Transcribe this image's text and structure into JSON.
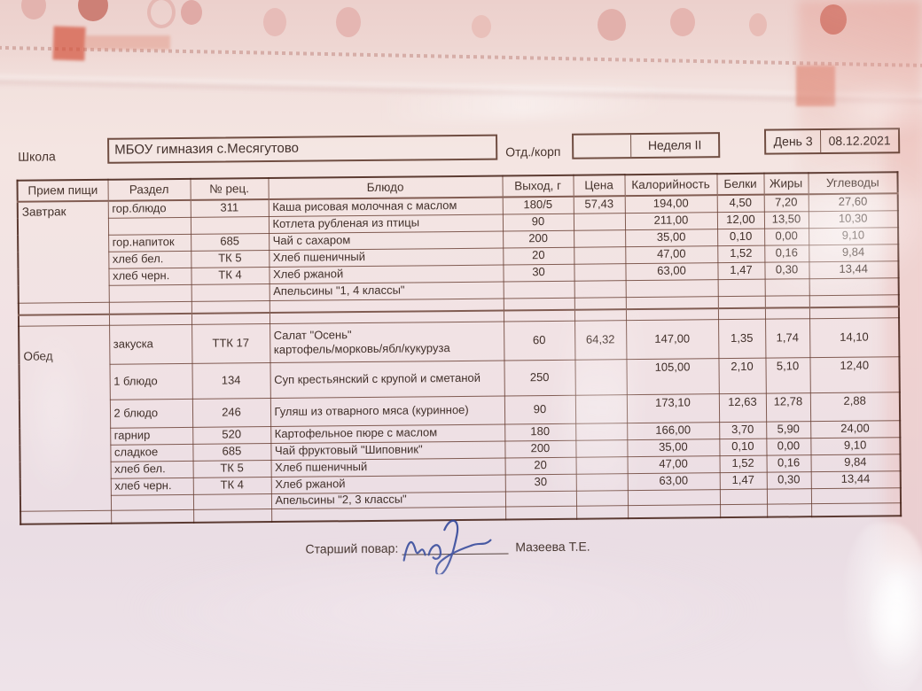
{
  "header": {
    "school_label": "Школа",
    "school_name": "МБОУ гимназия с.Месягутово",
    "dept_label": "Отд./корп",
    "dept_value": "",
    "week": "Неделя II",
    "day": "День 3",
    "date": "08.12.2021"
  },
  "table": {
    "columns": [
      "Прием пищи",
      "Раздел",
      "№ рец.",
      "Блюдо",
      "Выход, г",
      "Цена",
      "Калорийность",
      "Белки",
      "Жиры",
      "Углеводы"
    ],
    "sections": [
      {
        "meal": "Завтрак",
        "rows": [
          {
            "razdel": "гор.блюдо",
            "rec": "311",
            "dish": "Каша рисовая молочная с маслом",
            "out": "180/5",
            "price": "57,43",
            "kcal": "194,00",
            "protein": "4,50",
            "fat": "7,20",
            "carbs": "27,60"
          },
          {
            "razdel": "",
            "rec": "",
            "dish": "Котлета рубленая из птицы",
            "out": "90",
            "price": "",
            "kcal": "211,00",
            "protein": "12,00",
            "fat": "13,50",
            "carbs": "10,30"
          },
          {
            "razdel": "гор.напиток",
            "rec": "685",
            "dish": "Чай с сахаром",
            "out": "200",
            "price": "",
            "kcal": "35,00",
            "protein": "0,10",
            "fat": "0,00",
            "carbs": "9,10"
          },
          {
            "razdel": "хлеб бел.",
            "rec": "ТК 5",
            "dish": "Хлеб пшеничный",
            "out": "20",
            "price": "",
            "kcal": "47,00",
            "protein": "1,52",
            "fat": "0,16",
            "carbs": "9,84"
          },
          {
            "razdel": "хлеб черн.",
            "rec": "ТК 4",
            "dish": "Хлеб ржаной",
            "out": "30",
            "price": "",
            "kcal": "63,00",
            "protein": "1,47",
            "fat": "0,30",
            "carbs": "13,44"
          },
          {
            "razdel": "",
            "rec": "",
            "dish": "Апельсины \"1, 4 классы\"",
            "out": "",
            "price": "",
            "kcal": "",
            "protein": "",
            "fat": "",
            "carbs": ""
          }
        ]
      },
      {
        "meal": "Обед",
        "rows": [
          {
            "razdel": "закуска",
            "rec": "ТТК 17",
            "dish": "Салат \"Осень\"",
            "dish2": "картофель/морковь/ябл/кукуруза",
            "out": "60",
            "price": "64,32",
            "kcal": "147,00",
            "protein": "1,35",
            "fat": "1,74",
            "carbs": "14,10"
          },
          {
            "razdel": "1 блюдо",
            "rec": "134",
            "dish": "Суп крестьянский с крупой и сметаной",
            "out": "250",
            "price": "",
            "kcal": "105,00",
            "protein": "2,10",
            "fat": "5,10",
            "carbs": "12,40"
          },
          {
            "razdel": "2 блюдо",
            "rec": "246",
            "dish": "Гуляш из отварного мяса (куринное)",
            "out": "90",
            "price": "",
            "kcal": "173,10",
            "protein": "12,63",
            "fat": "12,78",
            "carbs": "2,88"
          },
          {
            "razdel": "гарнир",
            "rec": "520",
            "dish": "Картофельное пюре с маслом",
            "out": "180",
            "price": "",
            "kcal": "166,00",
            "protein": "3,70",
            "fat": "5,90",
            "carbs": "24,00"
          },
          {
            "razdel": "сладкое",
            "rec": "685",
            "dish": "Чай фруктовый \"Шиповник\"",
            "out": "200",
            "price": "",
            "kcal": "35,00",
            "protein": "0,10",
            "fat": "0,00",
            "carbs": "9,10"
          },
          {
            "razdel": "хлеб бел.",
            "rec": "ТК 5",
            "dish": "Хлеб пшеничный",
            "out": "20",
            "price": "",
            "kcal": "47,00",
            "protein": "1,52",
            "fat": "0,16",
            "carbs": "9,84"
          },
          {
            "razdel": "хлеб черн.",
            "rec": "ТК 4",
            "dish": "Хлеб ржаной",
            "out": "30",
            "price": "",
            "kcal": "63,00",
            "protein": "1,47",
            "fat": "0,30",
            "carbs": "13,44"
          },
          {
            "razdel": "",
            "rec": "",
            "dish": "Апельсины \"2, 3 классы\"",
            "out": "",
            "price": "",
            "kcal": "",
            "protein": "",
            "fat": "",
            "carbs": ""
          }
        ]
      }
    ]
  },
  "signature": {
    "label": "Старший повар:",
    "name": "Мазеева Т.Е."
  },
  "colors": {
    "table_border": "#5f372a",
    "ink": "#43312c",
    "signature_ink": "#33499b",
    "stain_red": "#d4543e",
    "paper_pink": "#f2e0dd"
  }
}
